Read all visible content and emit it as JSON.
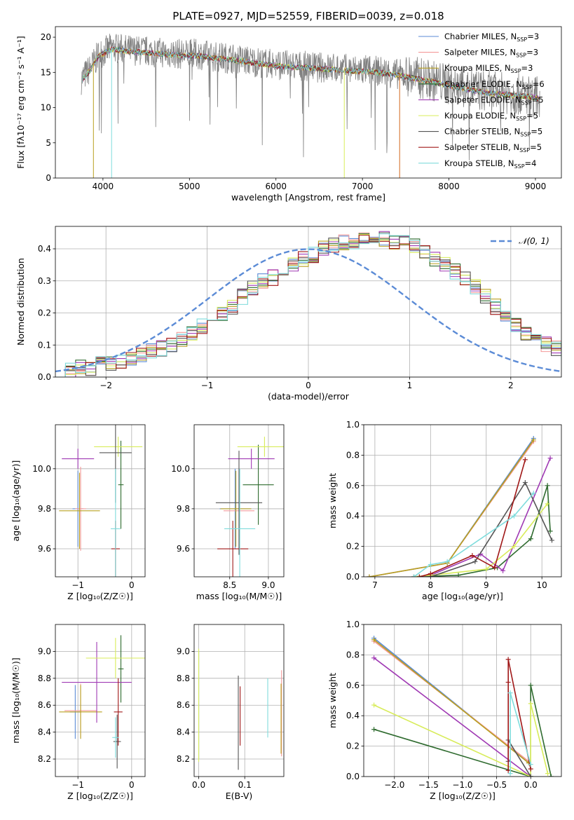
{
  "colors": {
    "Chabrier MILES": "#5b8bd6",
    "Salpeter MILES": "#f49a9a",
    "Kroupa MILES": "#b8a020",
    "Chabrier ELODIE": "#2f6b2f",
    "Salpeter ELODIE": "#a03ab4",
    "Kroupa ELODIE": "#d8ec5a",
    "Chabrier STELIB": "#555555",
    "Salpeter STELIB": "#a01818",
    "Kroupa STELIB": "#7fdcdc"
  },
  "chart_data": [
    {
      "id": "spectrum",
      "type": "line",
      "title": "PLATE=0927, MJD=52559, FIBERID=0039, z=0.018",
      "xlabel": "wavelength [Angstrom, rest frame]",
      "ylabel": "Flux [fλ10⁻¹⁷ erg cm⁻² s⁻¹ A⁻¹]",
      "xlim": [
        3450,
        9300
      ],
      "ylim": [
        0,
        21.5
      ],
      "xticks": [
        4000,
        5000,
        6000,
        7000,
        8000,
        9000
      ],
      "yticks": [
        0,
        5,
        10,
        15,
        20
      ],
      "legend_position": "top-right",
      "legend": [
        {
          "model": "Chabrier MILES",
          "label": "Chabrier MILES, N",
          "sub": "SSP",
          "val": "=3"
        },
        {
          "model": "Salpeter MILES",
          "label": "Salpeter MILES, N",
          "sub": "SSP",
          "val": "=3"
        },
        {
          "model": "Kroupa MILES",
          "label": "Kroupa MILES, N",
          "sub": "SSP",
          "val": "=3"
        },
        {
          "model": "Chabrier ELODIE",
          "label": "Chabrier ELODIE, N",
          "sub": "SSP",
          "val": "=6"
        },
        {
          "model": "Salpeter ELODIE",
          "label": "Salpeter ELODIE, N",
          "sub": "SSP",
          "val": "=5"
        },
        {
          "model": "Kroupa ELODIE",
          "label": "Kroupa ELODIE, N",
          "sub": "SSP",
          "val": "=5"
        },
        {
          "model": "Chabrier STELIB",
          "label": "Chabrier STELIB, N",
          "sub": "SSP",
          "val": "=5"
        },
        {
          "model": "Salpeter STELIB",
          "label": "Salpeter STELIB, N",
          "sub": "SSP",
          "val": "=5"
        },
        {
          "model": "Kroupa STELIB",
          "label": "Kroupa STELIB, N",
          "sub": "SSP",
          "val": "=4"
        }
      ],
      "data_curve": {
        "x": [
          3750,
          3850,
          3950,
          4100,
          4300,
          4500,
          4700,
          4900,
          5100,
          5300,
          5500,
          5700,
          5900,
          6100,
          6300,
          6500,
          6700,
          6900,
          7100,
          7300,
          7500,
          7700,
          7900,
          8100,
          8300,
          8500,
          8700,
          8900,
          9050
        ],
        "y": [
          14.0,
          15.5,
          17.5,
          18.5,
          18.2,
          18.0,
          17.8,
          17.6,
          17.6,
          17.2,
          17.0,
          16.6,
          16.3,
          16.0,
          15.9,
          15.7,
          15.6,
          15.4,
          15.3,
          15.0,
          14.6,
          14.1,
          13.6,
          13.1,
          12.6,
          12.2,
          12.0,
          11.8,
          11.5
        ]
      }
    },
    {
      "id": "residuals",
      "type": "histogram",
      "xlabel": "(data-model)/error",
      "ylabel": "Normed distribution",
      "xlim": [
        -2.5,
        2.5
      ],
      "ylim": [
        0,
        0.47
      ],
      "xticks": [
        -2,
        -1,
        0,
        1,
        2
      ],
      "yticks": [
        0.0,
        0.1,
        0.2,
        0.3,
        0.4
      ],
      "legend_position": "top-right",
      "legend": [
        "𝒩(0, 1)"
      ],
      "bins": {
        "start": -2.5,
        "width": 0.1
      },
      "histogram": [
        0.02,
        0.02,
        0.03,
        0.03,
        0.04,
        0.04,
        0.05,
        0.06,
        0.07,
        0.08,
        0.09,
        0.1,
        0.12,
        0.14,
        0.16,
        0.18,
        0.2,
        0.22,
        0.25,
        0.28,
        0.3,
        0.31,
        0.33,
        0.35,
        0.37,
        0.38,
        0.4,
        0.41,
        0.42,
        0.42,
        0.44,
        0.43,
        0.43,
        0.42,
        0.42,
        0.41,
        0.39,
        0.37,
        0.35,
        0.33,
        0.31,
        0.28,
        0.25,
        0.22,
        0.19,
        0.16,
        0.14,
        0.12,
        0.1,
        0.09,
        0.08,
        0.07,
        0.06,
        0.05,
        0.04,
        0.04,
        0.03,
        0.03,
        0.02,
        0.02
      ],
      "gaussian": {
        "mean": 0,
        "sigma": 1
      }
    },
    {
      "id": "age-vs-Z",
      "type": "errorbar",
      "xlabel": "Z [log₁₀(Z/Z☉)]",
      "ylabel": "age [log₁₀(age/yr)]",
      "xlim": [
        -1.42,
        0.25
      ],
      "ylim": [
        9.46,
        10.22
      ],
      "xticks": [
        -1,
        0
      ],
      "yticks": [
        9.6,
        9.8,
        10.0
      ],
      "points": [
        {
          "model": "Chabrier MILES",
          "x": -1.0,
          "y": 9.8,
          "xerr": 0.1,
          "yerr": 0.19
        },
        {
          "model": "Salpeter MILES",
          "x": -0.95,
          "y": 9.8,
          "xerr": 0.1,
          "yerr": 0.21
        },
        {
          "model": "Kroupa MILES",
          "x": -0.97,
          "y": 9.79,
          "xerr": 0.38,
          "yerr": 0.19
        },
        {
          "model": "Chabrier ELODIE",
          "x": -0.2,
          "y": 9.92,
          "xerr": 0.05,
          "yerr": 0.22
        },
        {
          "model": "Salpeter ELODIE",
          "x": -1.0,
          "y": 10.05,
          "xerr": 0.3,
          "yerr": 0.05
        },
        {
          "model": "Kroupa ELODIE",
          "x": -0.25,
          "y": 10.11,
          "xerr": 0.45,
          "yerr": 0.05
        },
        {
          "model": "Chabrier STELIB",
          "x": -0.3,
          "y": 10.08,
          "xerr": 0.3,
          "yerr": 0.25
        },
        {
          "model": "Salpeter STELIB",
          "x": -0.3,
          "y": 9.6,
          "xerr": 0.08,
          "yerr": 0.14
        },
        {
          "model": "Kroupa STELIB",
          "x": -0.3,
          "y": 9.7,
          "xerr": 0.09,
          "yerr": 0.3
        }
      ]
    },
    {
      "id": "age-vs-mass",
      "type": "errorbar",
      "xlabel": "mass [log₁₀(M/M☉)]",
      "ylabel": "",
      "xlim": [
        8.04,
        9.2
      ],
      "ylim": [
        9.46,
        10.22
      ],
      "xticks": [
        8.5,
        9.0
      ],
      "yticks": [
        9.6,
        9.8,
        10.0
      ],
      "points": [
        {
          "model": "Chabrier MILES",
          "x": 8.57,
          "y": 9.8,
          "xerr": 0.2,
          "yerr": 0.2
        },
        {
          "model": "Salpeter MILES",
          "x": 8.62,
          "y": 9.79,
          "xerr": 0.2,
          "yerr": 0.2
        },
        {
          "model": "Kroupa MILES",
          "x": 8.58,
          "y": 9.8,
          "xerr": 0.2,
          "yerr": 0.19
        },
        {
          "model": "Chabrier ELODIE",
          "x": 8.87,
          "y": 9.92,
          "xerr": 0.2,
          "yerr": 0.2
        },
        {
          "model": "Salpeter ELODIE",
          "x": 8.78,
          "y": 10.05,
          "xerr": 0.3,
          "yerr": 0.05
        },
        {
          "model": "Kroupa ELODIE",
          "x": 8.95,
          "y": 10.11,
          "xerr": 0.35,
          "yerr": 0.05
        },
        {
          "model": "Chabrier STELIB",
          "x": 8.62,
          "y": 9.83,
          "xerr": 0.3,
          "yerr": 0.26
        },
        {
          "model": "Salpeter STELIB",
          "x": 8.54,
          "y": 9.6,
          "xerr": 0.2,
          "yerr": 0.14
        },
        {
          "model": "Kroupa STELIB",
          "x": 8.63,
          "y": 9.7,
          "xerr": 0.2,
          "yerr": 0.3
        }
      ]
    },
    {
      "id": "weight-vs-age",
      "type": "line",
      "xlabel": "age [log₁₀(age/yr)]",
      "ylabel": "mass weight",
      "xlim": [
        6.8,
        10.35
      ],
      "ylim": [
        0,
        1.0
      ],
      "xticks": [
        7,
        8,
        9,
        10
      ],
      "yticks": [
        0.0,
        0.2,
        0.4,
        0.6,
        0.8,
        1.0
      ],
      "series": [
        {
          "model": "Chabrier MILES",
          "x": [
            6.9,
            8.3,
            9.85
          ],
          "y": [
            0.0,
            0.09,
            0.91
          ]
        },
        {
          "model": "Salpeter MILES",
          "x": [
            6.9,
            8.3,
            9.85
          ],
          "y": [
            0.0,
            0.09,
            0.89
          ]
        },
        {
          "model": "Kroupa MILES",
          "x": [
            6.9,
            8.3,
            9.85
          ],
          "y": [
            0.0,
            0.09,
            0.9
          ]
        },
        {
          "model": "Chabrier ELODIE",
          "x": [
            7.7,
            8.5,
            9.2,
            9.8,
            10.1,
            10.15
          ],
          "y": [
            0.0,
            0.01,
            0.06,
            0.25,
            0.6,
            0.3
          ]
        },
        {
          "model": "Salpeter ELODIE",
          "x": [
            7.7,
            8.0,
            8.9,
            9.3,
            10.15
          ],
          "y": [
            0.0,
            0.01,
            0.15,
            0.04,
            0.78
          ]
        },
        {
          "model": "Kroupa ELODIE",
          "x": [
            7.7,
            8.0,
            9.0,
            9.5,
            10.1
          ],
          "y": [
            0.0,
            0.01,
            0.05,
            0.2,
            0.48
          ]
        },
        {
          "model": "Chabrier STELIB",
          "x": [
            7.8,
            8.0,
            8.8,
            9.7,
            10.18
          ],
          "y": [
            0.0,
            0.0,
            0.1,
            0.62,
            0.24
          ]
        },
        {
          "model": "Salpeter STELIB",
          "x": [
            7.8,
            8.0,
            8.75,
            9.15,
            9.7
          ],
          "y": [
            0.0,
            0.02,
            0.14,
            0.06,
            0.77
          ]
        },
        {
          "model": "Kroupa STELIB",
          "x": [
            7.7,
            8.0,
            8.3,
            9.5,
            9.85
          ],
          "y": [
            0.0,
            0.08,
            0.1,
            0.4,
            0.55
          ]
        }
      ]
    },
    {
      "id": "mass-vs-Z",
      "type": "errorbar",
      "xlabel": "Z [log₁₀(Z/Z☉)]",
      "ylabel": "mass [log₁₀(M/M☉)]",
      "xlim": [
        -1.42,
        0.25
      ],
      "ylim": [
        8.07,
        9.2
      ],
      "xticks": [
        -1,
        0
      ],
      "yticks": [
        8.2,
        8.4,
        8.6,
        8.8,
        9.0
      ],
      "points": [
        {
          "model": "Chabrier MILES",
          "x": -1.05,
          "y": 8.55,
          "xerr": 0.1,
          "yerr": 0.2
        },
        {
          "model": "Salpeter MILES",
          "x": -0.95,
          "y": 8.56,
          "xerr": 0.3,
          "yerr": 0.2
        },
        {
          "model": "Kroupa MILES",
          "x": -0.95,
          "y": 8.55,
          "xerr": 0.4,
          "yerr": 0.2
        },
        {
          "model": "Chabrier ELODIE",
          "x": -0.2,
          "y": 8.87,
          "xerr": 0.05,
          "yerr": 0.25
        },
        {
          "model": "Salpeter ELODIE",
          "x": -0.65,
          "y": 8.77,
          "xerr": 0.65,
          "yerr": 0.3
        },
        {
          "model": "Kroupa ELODIE",
          "x": -0.3,
          "y": 8.95,
          "xerr": 0.55,
          "yerr": 0.15
        },
        {
          "model": "Chabrier STELIB",
          "x": -0.27,
          "y": 8.33,
          "xerr": 0.07,
          "yerr": 0.2
        },
        {
          "model": "Salpeter STELIB",
          "x": -0.25,
          "y": 8.55,
          "xerr": 0.08,
          "yerr": 0.25
        },
        {
          "model": "Kroupa STELIB",
          "x": -0.3,
          "y": 8.36,
          "xerr": 0.06,
          "yerr": 0.15
        }
      ]
    },
    {
      "id": "mass-vs-ebv",
      "type": "errorbar",
      "xlabel": "E(B-V)",
      "ylabel": "",
      "xlim": [
        -0.01,
        0.185
      ],
      "ylim": [
        8.07,
        9.2
      ],
      "xticks": [
        0.0,
        0.1
      ],
      "yticks": [
        8.2,
        8.4,
        8.6,
        8.8,
        9.0
      ],
      "points": [
        {
          "model": "Chabrier MILES",
          "x": 0.0,
          "y": 8.6,
          "yerr": 0.4
        },
        {
          "model": "Kroupa ELODIE",
          "x": 0.0,
          "y": 8.6,
          "yerr": 0.42
        },
        {
          "model": "Chabrier STELIB",
          "x": 0.086,
          "y": 8.47,
          "yerr": 0.35
        },
        {
          "model": "Salpeter STELIB",
          "x": 0.09,
          "y": 8.52,
          "yerr": 0.22
        },
        {
          "model": "Kroupa STELIB",
          "x": 0.15,
          "y": 8.58,
          "yerr": 0.22
        },
        {
          "model": "Salpeter MILES",
          "x": 0.18,
          "y": 8.54,
          "yerr": 0.32
        },
        {
          "model": "Kroupa MILES",
          "x": 0.179,
          "y": 8.5,
          "yerr": 0.26
        }
      ]
    },
    {
      "id": "weight-vs-Z",
      "type": "line",
      "xlabel": "Z [log₁₀(Z/Z☉)]",
      "ylabel": "mass weight",
      "xlim": [
        -2.45,
        0.45
      ],
      "ylim": [
        0,
        1.0
      ],
      "xticks": [
        -2.0,
        -1.5,
        -1.0,
        -0.5,
        0.0
      ],
      "yticks": [
        0.0,
        0.2,
        0.4,
        0.6,
        0.8,
        1.0
      ],
      "series": [
        {
          "model": "Chabrier MILES",
          "x": [
            -2.3,
            -0.03
          ],
          "y": [
            0.91,
            0.09
          ]
        },
        {
          "model": "Salpeter MILES",
          "x": [
            -2.3,
            -0.03
          ],
          "y": [
            0.89,
            0.1
          ]
        },
        {
          "model": "Kroupa MILES",
          "x": [
            -2.3,
            -0.03
          ],
          "y": [
            0.9,
            0.09
          ]
        },
        {
          "model": "Chabrier ELODIE",
          "x": [
            -2.3,
            0.0,
            0.0,
            0.3
          ],
          "y": [
            0.31,
            0.0,
            0.6,
            0.0
          ]
        },
        {
          "model": "Salpeter ELODIE",
          "x": [
            -2.3,
            0.0
          ],
          "y": [
            0.78,
            0.0
          ]
        },
        {
          "model": "Kroupa ELODIE",
          "x": [
            -2.3,
            0.0,
            0.0,
            0.25
          ],
          "y": [
            0.47,
            0.0,
            0.48,
            0.02
          ]
        },
        {
          "model": "Chabrier STELIB",
          "x": [
            -0.33,
            -0.33,
            0.0
          ],
          "y": [
            0.1,
            0.24,
            0.0
          ]
        },
        {
          "model": "Salpeter STELIB",
          "x": [
            -0.33,
            -0.33,
            -0.33,
            0.0
          ],
          "y": [
            0.04,
            0.62,
            0.77,
            0.05
          ]
        },
        {
          "model": "Kroupa STELIB",
          "x": [
            -0.3,
            -0.3,
            0.0
          ],
          "y": [
            0.02,
            0.55,
            0.08
          ]
        }
      ]
    }
  ]
}
